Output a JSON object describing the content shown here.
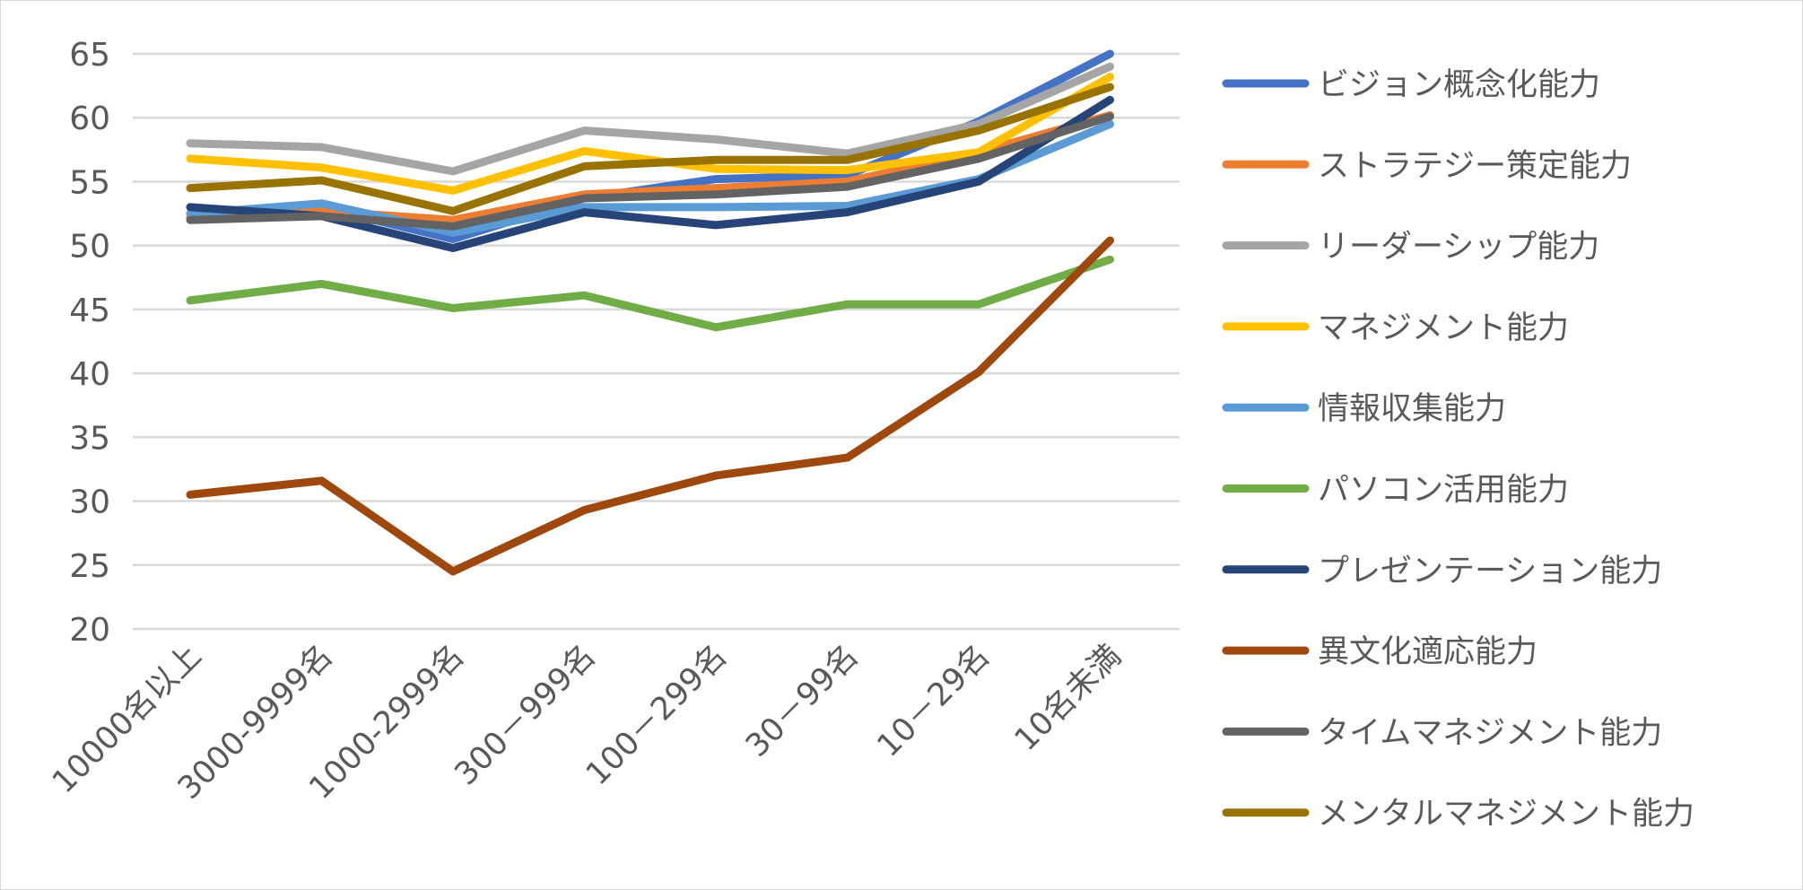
{
  "chart_data": {
    "type": "line",
    "title": "",
    "xlabel": "",
    "ylabel": "",
    "ylim": [
      20,
      65
    ],
    "yticks": [
      20,
      25,
      30,
      35,
      40,
      45,
      50,
      55,
      60,
      65
    ],
    "grid": true,
    "legend_position": "right",
    "categories": [
      "10000名以上",
      "3000-9999名",
      "1000-2999名",
      "300－999名",
      "100－299名",
      "30－99名",
      "10－29名",
      "10名未満"
    ],
    "series": [
      {
        "name": "ビジョン概念化能力",
        "color": "#4472C4",
        "values": [
          52.5,
          53.0,
          50.5,
          53.7,
          55.2,
          55.5,
          59.7,
          65.0
        ]
      },
      {
        "name": "ストラテジー策定能力",
        "color": "#ED7D31",
        "values": [
          52.2,
          52.7,
          52.0,
          54.0,
          54.5,
          55.0,
          57.3,
          60.2
        ]
      },
      {
        "name": "リーダーシップ能力",
        "color": "#A5A5A5",
        "values": [
          58.0,
          57.7,
          55.8,
          59.0,
          58.3,
          57.2,
          59.5,
          64.0
        ]
      },
      {
        "name": "マネジメント能力",
        "color": "#FFC000",
        "values": [
          56.8,
          56.1,
          54.3,
          57.4,
          56.0,
          55.9,
          57.3,
          63.2
        ]
      },
      {
        "name": "情報収集能力",
        "color": "#5B9BD5",
        "values": [
          52.5,
          53.3,
          51.0,
          53.0,
          53.0,
          53.1,
          55.2,
          59.5
        ]
      },
      {
        "name": "パソコン活用能力",
        "color": "#70AD47",
        "values": [
          45.7,
          47.0,
          45.1,
          46.1,
          43.6,
          45.4,
          45.4,
          48.9
        ]
      },
      {
        "name": "プレゼンテーション能力",
        "color": "#264478",
        "values": [
          53.0,
          52.3,
          49.8,
          52.6,
          51.6,
          52.6,
          55.0,
          61.4
        ]
      },
      {
        "name": "異文化適応能力",
        "color": "#9E480E",
        "values": [
          30.5,
          31.6,
          24.5,
          29.3,
          32.0,
          33.4,
          40.1,
          50.4
        ]
      },
      {
        "name": "タイムマネジメント能力",
        "color": "#636363",
        "values": [
          52.0,
          52.3,
          51.5,
          53.7,
          54.0,
          54.6,
          56.8,
          60.1
        ]
      },
      {
        "name": "メンタルマネジメント能力",
        "color": "#997300",
        "values": [
          54.5,
          55.1,
          52.7,
          56.2,
          56.7,
          56.7,
          59.0,
          62.4
        ]
      }
    ]
  }
}
